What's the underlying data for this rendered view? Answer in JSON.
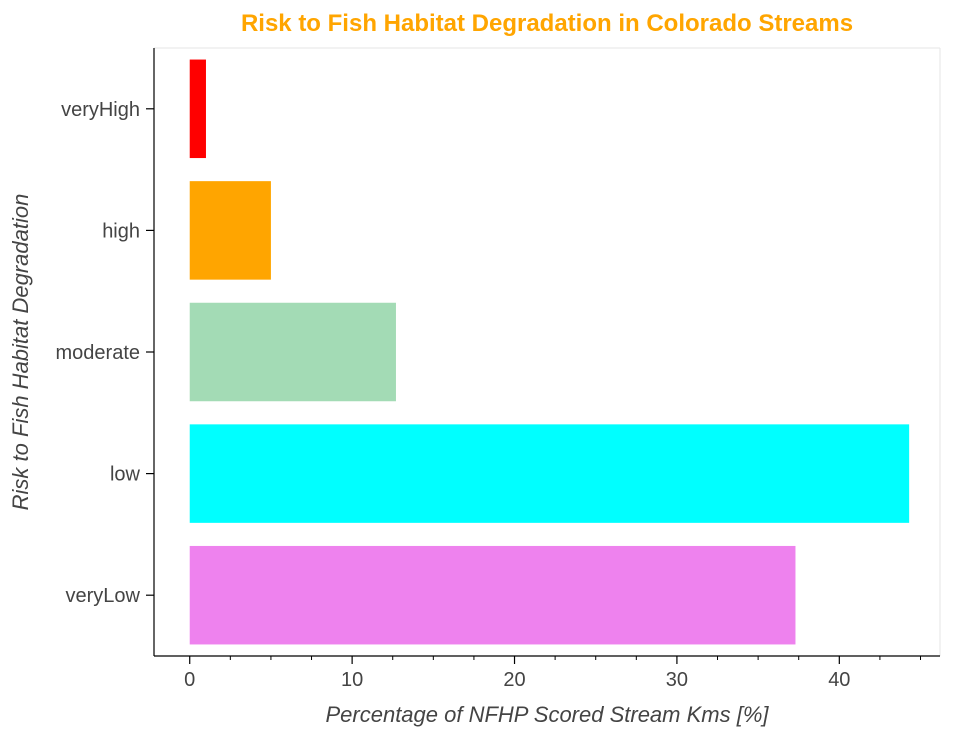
{
  "chart_data": {
    "type": "bar",
    "orientation": "horizontal",
    "title": "Risk to Fish Habitat Degradation in Colorado Streams",
    "xlabel": "Percentage of NFHP Scored Stream Kms [%]",
    "ylabel": "Risk to Fish Habitat Degradation",
    "categories": [
      "veryHigh",
      "high",
      "moderate",
      "low",
      "veryLow"
    ],
    "values": [
      1.0,
      5.0,
      12.7,
      44.3,
      37.3
    ],
    "colors": [
      "#ff0000",
      "#ffa500",
      "#a3dbb5",
      "#00ffff",
      "#ee82ee"
    ],
    "xlim": [
      -2.2,
      46.2
    ],
    "xticks": [
      "0",
      "10",
      "20",
      "30",
      "40"
    ],
    "grid": false,
    "title_color": "#ffa500"
  }
}
